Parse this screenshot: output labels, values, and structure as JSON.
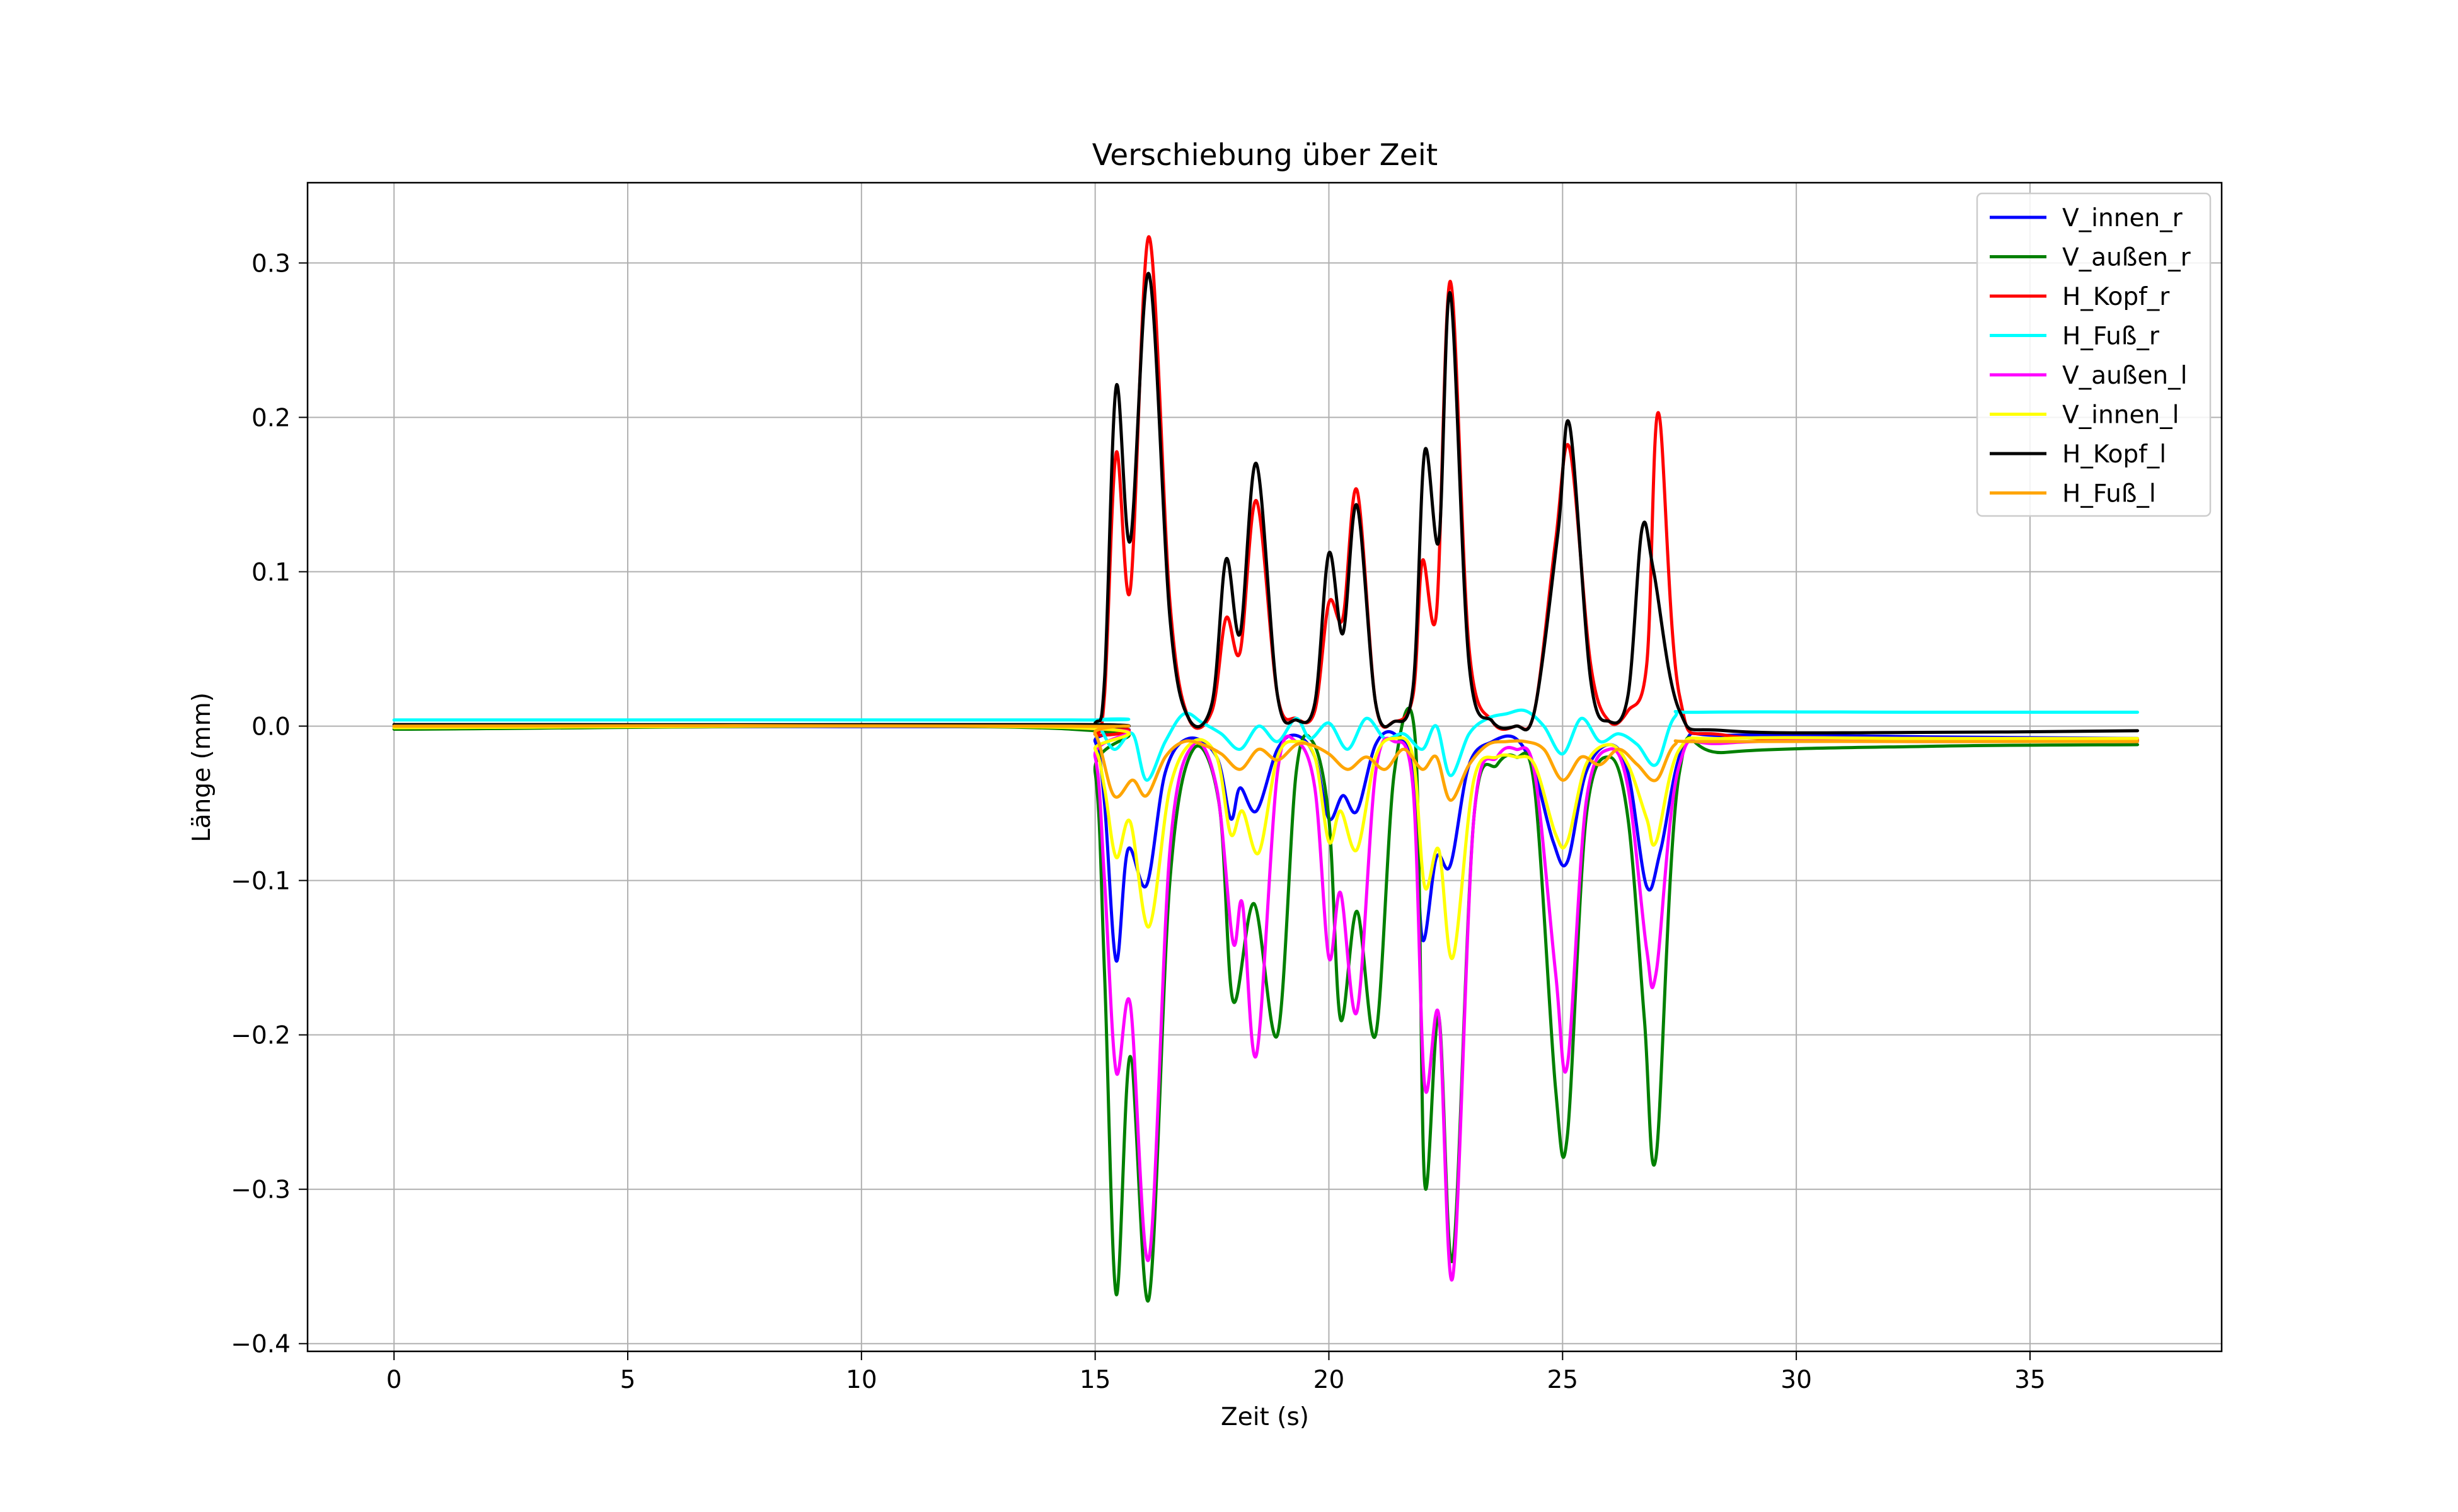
{
  "chart_data": {
    "type": "line",
    "title": "Verschiebung über Zeit",
    "xlabel": "Zeit (s)",
    "ylabel": "Länge (mm)",
    "xlim": [
      -1.85,
      39.1
    ],
    "ylim": [
      -0.405,
      0.352
    ],
    "xticks": [
      0,
      5,
      10,
      15,
      20,
      25,
      30,
      35
    ],
    "yticks": [
      -0.4,
      -0.3,
      -0.2,
      -0.1,
      0.0,
      0.1,
      0.2,
      0.3
    ],
    "xtick_labels": [
      "0",
      "5",
      "10",
      "15",
      "20",
      "25",
      "30",
      "35"
    ],
    "ytick_labels": [
      "−0.4",
      "−0.3",
      "−0.2",
      "−0.1",
      "0.0",
      "0.1",
      "0.2",
      "0.3"
    ],
    "grid": true,
    "legend_position": "top-right",
    "series": [
      {
        "name": "V_innen_r",
        "color": "#0000ff",
        "x": [
          0,
          14.5,
          15.0,
          15.2,
          15.45,
          15.7,
          16.1,
          16.5,
          17.0,
          17.6,
          17.9,
          18.1,
          18.45,
          18.9,
          19.3,
          19.7,
          20.0,
          20.3,
          20.6,
          21.0,
          21.4,
          21.8,
          22.0,
          22.3,
          22.6,
          23.0,
          23.5,
          24.0,
          24.4,
          24.8,
          25.1,
          25.5,
          26.0,
          26.4,
          26.8,
          27.1,
          27.6,
          28.5,
          33,
          37.3
        ],
        "y": [
          -0.001,
          -0.001,
          -0.01,
          -0.05,
          -0.152,
          -0.08,
          -0.103,
          -0.03,
          -0.008,
          -0.02,
          -0.06,
          -0.04,
          -0.055,
          -0.015,
          -0.006,
          -0.02,
          -0.06,
          -0.045,
          -0.055,
          -0.012,
          -0.005,
          -0.03,
          -0.138,
          -0.085,
          -0.09,
          -0.025,
          -0.01,
          -0.008,
          -0.03,
          -0.075,
          -0.088,
          -0.03,
          -0.012,
          -0.03,
          -0.104,
          -0.08,
          -0.012,
          -0.006,
          -0.007,
          -0.008
        ]
      },
      {
        "name": "V_außen_r",
        "color": "#008000",
        "x": [
          0,
          14.5,
          15.0,
          15.2,
          15.45,
          15.75,
          16.15,
          16.6,
          17.1,
          17.65,
          17.95,
          18.4,
          18.9,
          19.3,
          19.65,
          20.0,
          20.25,
          20.6,
          21.0,
          21.4,
          21.85,
          22.05,
          22.35,
          22.65,
          23.1,
          23.6,
          24.0,
          24.4,
          24.85,
          25.1,
          25.5,
          26.0,
          26.4,
          26.75,
          27.0,
          27.5,
          28.5,
          33,
          37.3
        ],
        "y": [
          -0.002,
          -0.002,
          -0.03,
          -0.16,
          -0.368,
          -0.214,
          -0.371,
          -0.1,
          -0.015,
          -0.05,
          -0.178,
          -0.115,
          -0.2,
          -0.03,
          -0.01,
          -0.06,
          -0.19,
          -0.12,
          -0.2,
          -0.03,
          -0.01,
          -0.296,
          -0.188,
          -0.345,
          -0.06,
          -0.025,
          -0.02,
          -0.04,
          -0.235,
          -0.266,
          -0.06,
          -0.02,
          -0.06,
          -0.19,
          -0.279,
          -0.03,
          -0.017,
          -0.013,
          -0.012
        ]
      },
      {
        "name": "H_Kopf_r",
        "color": "#ff0000",
        "x": [
          0,
          14.5,
          15.0,
          15.2,
          15.45,
          15.75,
          16.15,
          16.6,
          17.0,
          17.5,
          17.8,
          18.1,
          18.45,
          18.9,
          19.3,
          19.7,
          20.0,
          20.3,
          20.6,
          21.0,
          21.4,
          21.8,
          22.0,
          22.3,
          22.6,
          23.0,
          23.5,
          24.0,
          24.4,
          24.85,
          25.15,
          25.6,
          26.0,
          26.4,
          26.8,
          27.05,
          27.5,
          28.5,
          33,
          37.3
        ],
        "y": [
          0.0,
          0.0,
          -0.005,
          0.02,
          0.177,
          0.088,
          0.317,
          0.08,
          0.005,
          0.01,
          0.07,
          0.048,
          0.146,
          0.02,
          0.005,
          0.01,
          0.08,
          0.07,
          0.153,
          0.015,
          0.003,
          0.02,
          0.107,
          0.073,
          0.288,
          0.05,
          0.003,
          0.0,
          0.01,
          0.12,
          0.18,
          0.04,
          0.003,
          0.01,
          0.04,
          0.203,
          0.02,
          -0.006,
          -0.008,
          -0.009
        ]
      },
      {
        "name": "H_Fuß_r",
        "color": "#00ffff",
        "x": [
          0,
          14.5,
          15.0,
          15.4,
          15.8,
          16.1,
          16.5,
          16.9,
          17.3,
          17.7,
          18.1,
          18.5,
          18.9,
          19.3,
          19.6,
          20.0,
          20.4,
          20.8,
          21.2,
          21.6,
          22.0,
          22.3,
          22.6,
          23.0,
          23.4,
          23.8,
          24.2,
          24.6,
          25.0,
          25.4,
          25.8,
          26.2,
          26.6,
          27.0,
          27.4,
          28.0,
          33,
          37.3
        ],
        "y": [
          0.004,
          0.004,
          0.003,
          -0.015,
          -0.005,
          -0.035,
          -0.01,
          0.008,
          0.002,
          -0.005,
          -0.015,
          0.0,
          -0.01,
          0.005,
          -0.008,
          0.002,
          -0.015,
          0.005,
          -0.008,
          -0.005,
          -0.015,
          0.0,
          -0.032,
          -0.005,
          0.005,
          0.008,
          0.01,
          0.0,
          -0.018,
          0.005,
          -0.01,
          -0.005,
          -0.012,
          -0.025,
          0.006,
          0.009,
          0.009,
          0.009
        ]
      },
      {
        "name": "V_außen_l",
        "color": "#ff00ff",
        "x": [
          0,
          14.5,
          15.0,
          15.2,
          15.45,
          15.75,
          16.15,
          16.6,
          17.1,
          17.6,
          17.95,
          18.15,
          18.45,
          18.9,
          19.3,
          19.7,
          20.0,
          20.25,
          20.6,
          21.0,
          21.4,
          21.8,
          22.05,
          22.35,
          22.65,
          23.1,
          23.6,
          24.0,
          24.4,
          24.85,
          25.1,
          25.5,
          26.0,
          26.4,
          26.8,
          27.0,
          27.5,
          28.5,
          33,
          37.3
        ],
        "y": [
          -0.001,
          -0.001,
          -0.02,
          -0.1,
          -0.224,
          -0.18,
          -0.345,
          -0.08,
          -0.012,
          -0.04,
          -0.14,
          -0.115,
          -0.213,
          -0.03,
          -0.01,
          -0.04,
          -0.15,
          -0.108,
          -0.185,
          -0.03,
          -0.01,
          -0.04,
          -0.233,
          -0.187,
          -0.357,
          -0.06,
          -0.02,
          -0.015,
          -0.03,
          -0.16,
          -0.22,
          -0.05,
          -0.015,
          -0.04,
          -0.145,
          -0.16,
          -0.025,
          -0.011,
          -0.01,
          -0.01
        ]
      },
      {
        "name": "V_innen_l",
        "color": "#ffff00",
        "x": [
          0,
          14.5,
          15.0,
          15.2,
          15.45,
          15.75,
          16.15,
          16.6,
          17.1,
          17.6,
          17.9,
          18.15,
          18.5,
          18.9,
          19.3,
          19.7,
          20.0,
          20.25,
          20.6,
          21.0,
          21.4,
          21.8,
          22.05,
          22.35,
          22.65,
          23.1,
          23.6,
          24.0,
          24.4,
          24.85,
          25.1,
          25.5,
          26.0,
          26.4,
          26.8,
          27.0,
          27.5,
          28.5,
          33,
          37.3
        ],
        "y": [
          -0.001,
          -0.001,
          -0.015,
          -0.04,
          -0.085,
          -0.062,
          -0.13,
          -0.04,
          -0.01,
          -0.02,
          -0.07,
          -0.055,
          -0.082,
          -0.02,
          -0.01,
          -0.02,
          -0.075,
          -0.055,
          -0.08,
          -0.02,
          -0.008,
          -0.02,
          -0.104,
          -0.08,
          -0.15,
          -0.035,
          -0.02,
          -0.02,
          -0.025,
          -0.07,
          -0.075,
          -0.025,
          -0.012,
          -0.025,
          -0.06,
          -0.075,
          -0.015,
          -0.008,
          -0.008,
          -0.008
        ]
      },
      {
        "name": "H_Kopf_l",
        "color": "#000000",
        "x": [
          0,
          14.5,
          15.0,
          15.2,
          15.45,
          15.75,
          16.15,
          16.6,
          17.0,
          17.5,
          17.8,
          18.1,
          18.45,
          18.9,
          19.3,
          19.7,
          20.0,
          20.3,
          20.6,
          21.0,
          21.4,
          21.8,
          22.05,
          22.35,
          22.6,
          23.0,
          23.5,
          24.0,
          24.4,
          24.9,
          25.15,
          25.6,
          26.0,
          26.4,
          26.7,
          26.95,
          27.5,
          28.5,
          33,
          37.3
        ],
        "y": [
          0.001,
          0.001,
          0.002,
          0.03,
          0.22,
          0.12,
          0.293,
          0.07,
          0.005,
          0.015,
          0.108,
          0.06,
          0.17,
          0.02,
          0.004,
          0.015,
          0.112,
          0.06,
          0.143,
          0.015,
          0.003,
          0.025,
          0.178,
          0.12,
          0.28,
          0.04,
          0.003,
          0.0,
          0.01,
          0.125,
          0.195,
          0.03,
          0.003,
          0.02,
          0.128,
          0.1,
          0.01,
          -0.003,
          -0.004,
          -0.003
        ]
      },
      {
        "name": "H_Fuß_l",
        "color": "#ffa500",
        "x": [
          0,
          14.5,
          15.0,
          15.4,
          15.8,
          16.1,
          16.5,
          16.9,
          17.3,
          17.7,
          18.1,
          18.5,
          18.9,
          19.3,
          19.6,
          20.0,
          20.4,
          20.8,
          21.2,
          21.6,
          22.0,
          22.3,
          22.6,
          23.0,
          23.4,
          23.8,
          24.2,
          24.6,
          25.0,
          25.4,
          25.8,
          26.2,
          26.6,
          27.0,
          27.4,
          28.0,
          33,
          37.3
        ],
        "y": [
          0.0,
          0.0,
          -0.005,
          -0.045,
          -0.035,
          -0.045,
          -0.02,
          -0.01,
          -0.012,
          -0.018,
          -0.028,
          -0.015,
          -0.022,
          -0.012,
          -0.012,
          -0.018,
          -0.028,
          -0.02,
          -0.028,
          -0.015,
          -0.028,
          -0.02,
          -0.048,
          -0.025,
          -0.012,
          -0.01,
          -0.01,
          -0.015,
          -0.035,
          -0.02,
          -0.025,
          -0.015,
          -0.025,
          -0.035,
          -0.012,
          -0.01,
          -0.01,
          -0.01
        ]
      }
    ]
  }
}
